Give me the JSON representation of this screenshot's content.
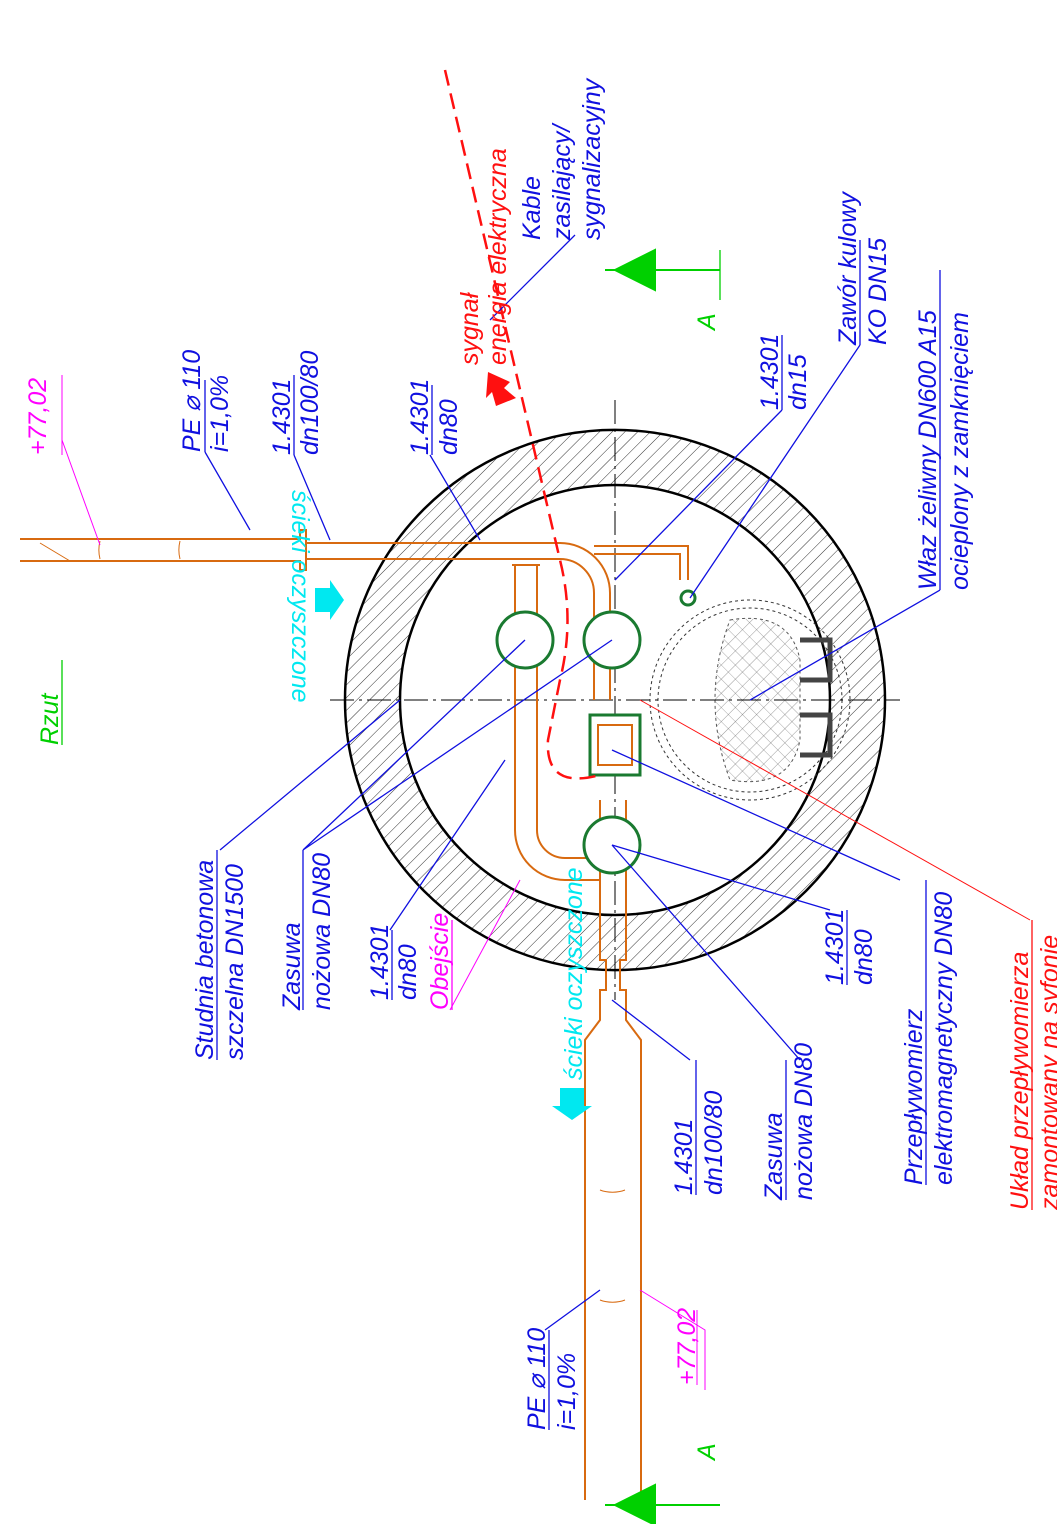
{
  "title": "Rzut",
  "levels": [
    "+77,02",
    "+77,02"
  ],
  "section_marks": [
    "A",
    "A"
  ],
  "flow_labels": [
    "ścieki oczyszczone",
    "ścieki oczyszczone"
  ],
  "labels": [
    {
      "lines": [
        "PE ⌀ 110",
        "i=1,0%"
      ]
    },
    {
      "lines": [
        "1.4301",
        "dn100/80"
      ]
    },
    {
      "lines": [
        "1.4301",
        "dn80"
      ]
    },
    {
      "lines": [
        "sygnał",
        "energia elektryczna"
      ]
    },
    {
      "lines": [
        "Kable",
        "zasilający/",
        "sygnalizacyjny"
      ]
    },
    {
      "lines": [
        "1.4301",
        "dn15"
      ]
    },
    {
      "lines": [
        "Zawór kulowy",
        "KO DN15"
      ]
    },
    {
      "lines": [
        "Właz żeliwny DN600 A15",
        "ocieplony z zamknięciem"
      ]
    },
    {
      "lines": [
        "Studnia betonowa",
        "szczelna DN1500"
      ]
    },
    {
      "lines": [
        "Zasuwa",
        "nożowa DN80"
      ]
    },
    {
      "lines": [
        "1.4301",
        "dn80"
      ]
    },
    {
      "lines": [
        "Obejście"
      ]
    },
    {
      "lines": [
        "1.4301",
        "dn100/80"
      ]
    },
    {
      "lines": [
        "Zasuwa",
        "nożowa DN80"
      ]
    },
    {
      "lines": [
        "1.4301",
        "dn80"
      ]
    },
    {
      "lines": [
        "Przepływomierz",
        "elektromagnetyczny DN80"
      ]
    },
    {
      "lines": [
        "Układ przepływomierza",
        "zamontowany na syfonie"
      ]
    },
    {
      "lines": [
        "PE ⌀ 110",
        "i=1,0%"
      ]
    }
  ]
}
